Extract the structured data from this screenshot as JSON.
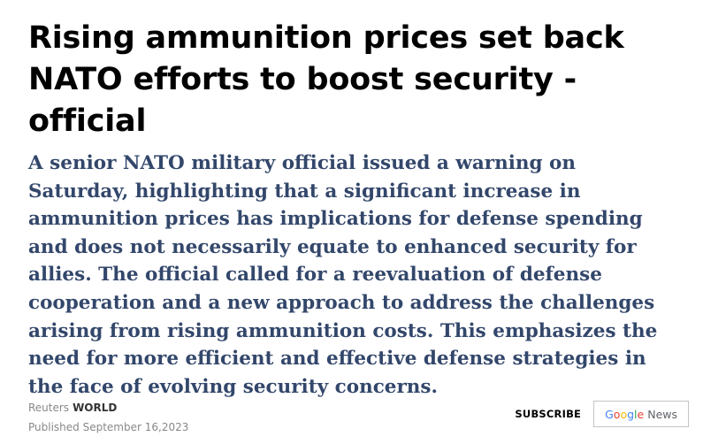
{
  "article": {
    "headline": "Rising ammunition prices set back NATO efforts to boost security - official",
    "summary": "A senior NATO military official issued a warning on Saturday, highlighting that a significant increase in ammunition prices has implications for defense spending and does not necessarily equate to enhanced security for allies. The official called for a reevaluation of defense cooperation and a new approach to address the challenges arising from rising ammunition costs. This emphasizes the need for more efficient and effective defense strategies in the face of evolving security concerns."
  },
  "meta": {
    "source": "Reuters",
    "section": "WORLD",
    "published": "Published September 16,2023"
  },
  "actions": {
    "subscribe_label": "SUBSCRIBE",
    "google_news": {
      "letters": [
        "G",
        "o",
        "o",
        "g",
        "l",
        "e"
      ],
      "news_label": "News"
    }
  },
  "colors": {
    "headline": "#000000",
    "summary": "#33476b",
    "meta": "#888888"
  }
}
